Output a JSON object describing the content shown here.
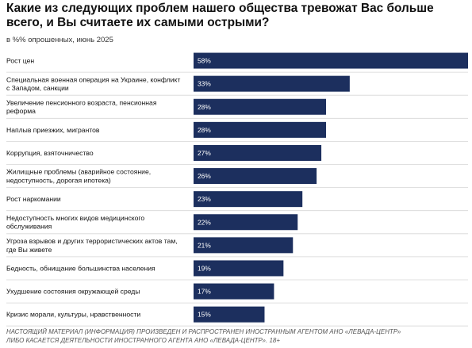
{
  "title": "Какие из следующих проблем нашего общества тревожат Вас больше всего, и Вы считаете их самыми острыми?",
  "subtitle": "в %% опрошенных, июнь 2025",
  "footer": {
    "line1": "НАСТОЯЩИЙ МАТЕРИАЛ (ИНФОРМАЦИЯ) ПРОИЗВЕДЕН И РАСПРОСТРАНЕН ИНОСТРАННЫМ АГЕНТОМ АНО «ЛЕВАДА-ЦЕНТР»",
    "line2": "ЛИБО КАСАЕТСЯ ДЕЯТЕЛЬНОСТИ ИНОСТРАННОГО АГЕНТА АНО «ЛЕВАДА-ЦЕНТР». 18+"
  },
  "colors": {
    "bar": "#1c2f5e",
    "separator": "#d6d6d6",
    "value_text": "#ffffff"
  },
  "chart_data": {
    "type": "bar",
    "orientation": "horizontal",
    "title": "Какие из следующих проблем нашего общества тревожат Вас больше всего, и Вы считаете их самыми острыми?",
    "subtitle": "в %% опрошенных, июнь 2025",
    "xlim": [
      0,
      58
    ],
    "grid": false,
    "categories": [
      [
        "Рост цен"
      ],
      [
        "Специальная военная операция на Украине, конфликт",
        "с Западом, санкции"
      ],
      [
        "Увеличение пенсионного возраста, пенсионная",
        "реформа"
      ],
      [
        "Наплыв приезжих, мигрантов"
      ],
      [
        "Коррупция, взяточничество"
      ],
      [
        "Жилищные проблемы (аварийное состояние,",
        "недоступность, дорогая ипотека)"
      ],
      [
        "Рост наркомании"
      ],
      [
        "Недоступность многих видов медицинского",
        "обслуживания"
      ],
      [
        "Угроза взрывов и других террористических актов там,",
        "где Вы живете"
      ],
      [
        "Бедность, обнищание большинства населения"
      ],
      [
        "Ухудшение состояния окружающей среды"
      ],
      [
        "Кризис морали, культуры, нравственности"
      ]
    ],
    "values": [
      58,
      33,
      28,
      28,
      27,
      26,
      23,
      22,
      21,
      19,
      17,
      15
    ],
    "value_labels": [
      "58%",
      "33%",
      "28%",
      "28%",
      "27%",
      "26%",
      "23%",
      "22%",
      "21%",
      "19%",
      "17%",
      "15%"
    ]
  }
}
